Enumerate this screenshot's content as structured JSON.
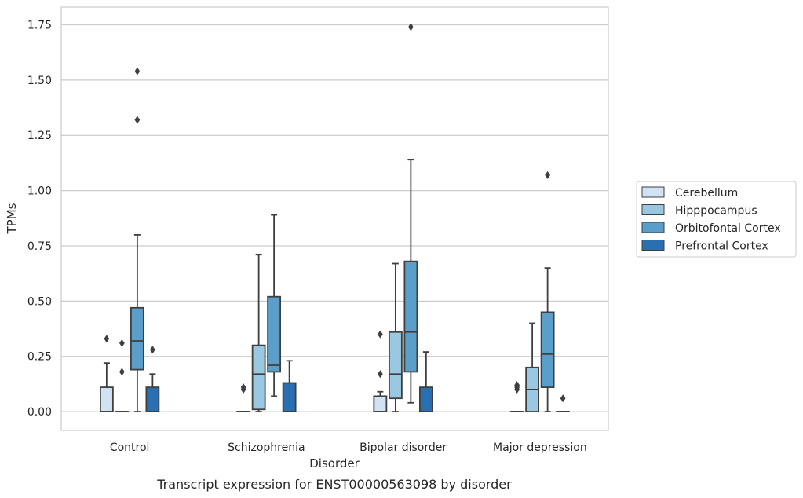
{
  "chart_data": {
    "type": "box",
    "title": "",
    "caption": "Transcript expression for ENST00000563098 by disorder",
    "xlabel": "Disorder",
    "ylabel": "TPMs",
    "ylim": [
      -0.085,
      1.83
    ],
    "yticks": [
      0.0,
      0.25,
      0.5,
      0.75,
      1.0,
      1.25,
      1.5,
      1.75
    ],
    "ytick_labels": [
      "0.00",
      "0.25",
      "0.50",
      "0.75",
      "1.00",
      "1.25",
      "1.50",
      "1.75"
    ],
    "grid": "horizontal",
    "legend_position": "right",
    "categories": [
      "Control",
      "Schizophrenia",
      "Bipolar disorder",
      "Major depression"
    ],
    "series": [
      {
        "name": "Cerebellum",
        "color": "#d1e2f2",
        "boxes": [
          {
            "whisker_low": 0.0,
            "q1": 0.0,
            "median": 0.0,
            "q3": 0.11,
            "whisker_high": 0.22,
            "outliers": [
              0.33
            ]
          },
          {
            "whisker_low": 0.0,
            "q1": 0.0,
            "median": 0.0,
            "q3": 0.0,
            "whisker_high": 0.0,
            "outliers": [
              0.1,
              0.11
            ]
          },
          {
            "whisker_low": 0.0,
            "q1": 0.0,
            "median": 0.0,
            "q3": 0.07,
            "whisker_high": 0.09,
            "outliers": [
              0.17,
              0.35
            ]
          },
          {
            "whisker_low": 0.0,
            "q1": 0.0,
            "median": 0.0,
            "q3": 0.0,
            "whisker_high": 0.0,
            "outliers": [
              0.1,
              0.11,
              0.12
            ]
          }
        ]
      },
      {
        "name": "Hipppocampus",
        "color": "#9ac8e0",
        "boxes": [
          {
            "whisker_low": 0.0,
            "q1": 0.0,
            "median": 0.0,
            "q3": 0.0,
            "whisker_high": 0.0,
            "outliers": [
              0.18,
              0.31
            ]
          },
          {
            "whisker_low": 0.0,
            "q1": 0.01,
            "median": 0.17,
            "q3": 0.3,
            "whisker_high": 0.71,
            "outliers": []
          },
          {
            "whisker_low": 0.0,
            "q1": 0.06,
            "median": 0.17,
            "q3": 0.36,
            "whisker_high": 0.67,
            "outliers": []
          },
          {
            "whisker_low": 0.0,
            "q1": 0.0,
            "median": 0.1,
            "q3": 0.2,
            "whisker_high": 0.4,
            "outliers": []
          }
        ]
      },
      {
        "name": "Orbitofontal Cortex",
        "color": "#5a9ec9",
        "boxes": [
          {
            "whisker_low": 0.0,
            "q1": 0.19,
            "median": 0.32,
            "q3": 0.47,
            "whisker_high": 0.8,
            "outliers": [
              1.32,
              1.54
            ]
          },
          {
            "whisker_low": 0.07,
            "q1": 0.18,
            "median": 0.21,
            "q3": 0.52,
            "whisker_high": 0.89,
            "outliers": []
          },
          {
            "whisker_low": 0.04,
            "q1": 0.18,
            "median": 0.36,
            "q3": 0.68,
            "whisker_high": 1.14,
            "outliers": [
              1.74
            ]
          },
          {
            "whisker_low": 0.0,
            "q1": 0.11,
            "median": 0.26,
            "q3": 0.45,
            "whisker_high": 0.65,
            "outliers": [
              1.07
            ]
          }
        ]
      },
      {
        "name": "Prefrontal Cortex",
        "color": "#2a6fb0",
        "boxes": [
          {
            "whisker_low": 0.0,
            "q1": 0.0,
            "median": 0.0,
            "q3": 0.11,
            "whisker_high": 0.17,
            "outliers": [
              0.28
            ]
          },
          {
            "whisker_low": 0.0,
            "q1": 0.0,
            "median": 0.0,
            "q3": 0.13,
            "whisker_high": 0.23,
            "outliers": []
          },
          {
            "whisker_low": 0.0,
            "q1": 0.0,
            "median": 0.0,
            "q3": 0.11,
            "whisker_high": 0.27,
            "outliers": []
          },
          {
            "whisker_low": 0.0,
            "q1": 0.0,
            "median": 0.0,
            "q3": 0.0,
            "whisker_high": 0.0,
            "outliers": [
              0.06
            ]
          }
        ]
      }
    ]
  }
}
